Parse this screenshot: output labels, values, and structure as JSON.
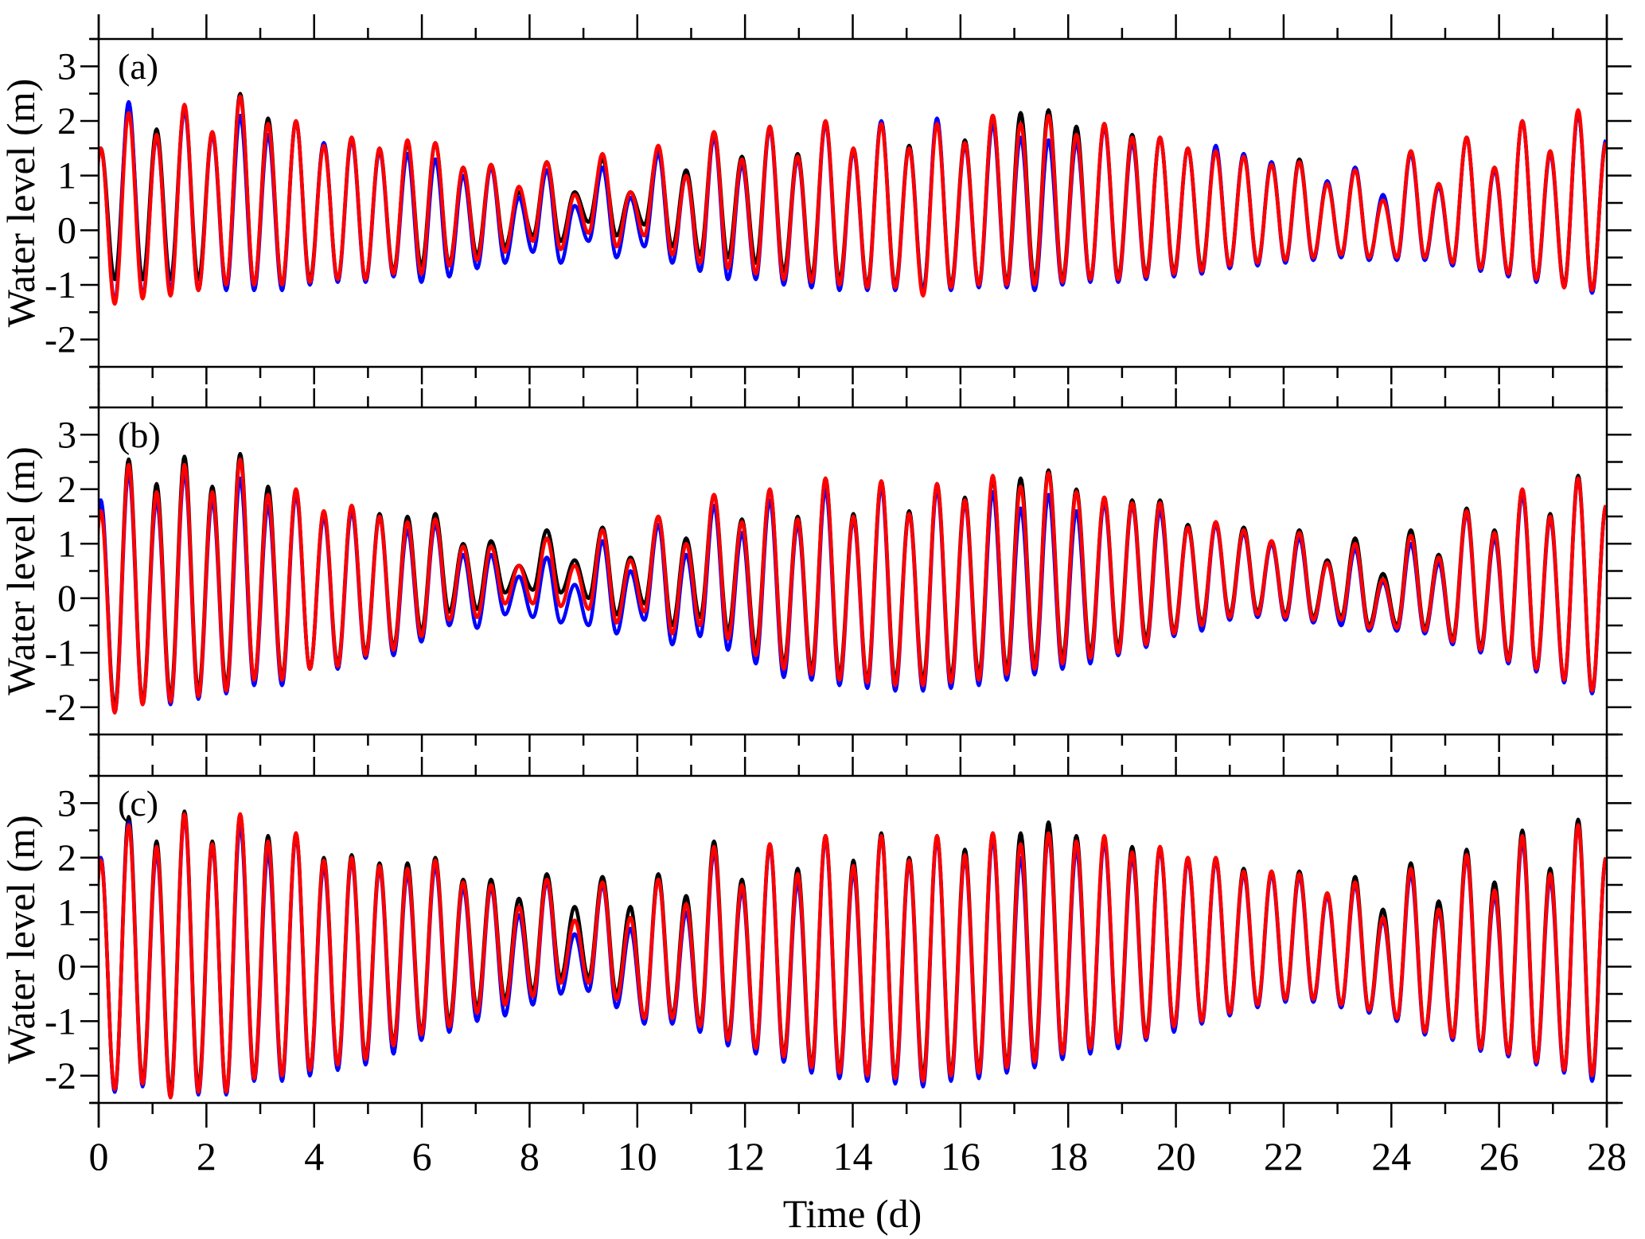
{
  "chart_data": [
    {
      "type": "line",
      "panel_label": "(a)",
      "xlabel": "",
      "ylabel": "Water level (m)",
      "xlim": [
        0,
        28
      ],
      "ylim": [
        -2.5,
        3.5
      ],
      "yticks": [
        -2,
        -1,
        0,
        1,
        2,
        3
      ],
      "grid": false,
      "series": [
        {
          "color": "#000000",
          "high_water": [
            1.5,
            2.2,
            1.85,
            2.25,
            1.8,
            2.5,
            2.05,
            2.0,
            1.6,
            1.7,
            1.5,
            1.6,
            1.6,
            1.15,
            1.2,
            0.7,
            1.25,
            0.7,
            1.3,
            0.7,
            1.5,
            1.1,
            1.8,
            1.35,
            1.9,
            1.4,
            2.0,
            1.5,
            2.0,
            1.55,
            2.0,
            1.65,
            2.1,
            2.15,
            2.2,
            1.9,
            1.95,
            1.75,
            1.7,
            1.5,
            1.5,
            1.4,
            1.25,
            1.3,
            0.9,
            1.15,
            0.6,
            1.45,
            0.85,
            1.7,
            1.15,
            2.0,
            1.45,
            2.15,
            1.6
          ],
          "low_water": [
            -0.9,
            -0.9,
            -0.9,
            -0.9,
            -1.0,
            -1.0,
            -1.0,
            -0.9,
            -0.9,
            -0.9,
            -0.75,
            -0.65,
            -0.6,
            -0.45,
            -0.3,
            -0.1,
            -0.2,
            0.15,
            -0.1,
            0.1,
            -0.3,
            -0.45,
            -0.5,
            -0.6,
            -0.75,
            -0.85,
            -0.9,
            -1.0,
            -1.0,
            -1.1,
            -1.0,
            -1.0,
            -0.95,
            -0.9,
            -0.9,
            -0.9,
            -0.85,
            -0.8,
            -0.75,
            -0.7,
            -0.65,
            -0.6,
            -0.55,
            -0.5,
            -0.45,
            -0.5,
            -0.5,
            -0.5,
            -0.6,
            -0.7,
            -0.8,
            -0.9,
            -1.0,
            -1.1
          ]
        },
        {
          "color": "#0000ff",
          "high_water": [
            1.5,
            2.35,
            1.7,
            2.2,
            1.75,
            2.1,
            1.75,
            2.0,
            1.6,
            1.65,
            1.45,
            1.4,
            1.3,
            1.0,
            1.15,
            0.6,
            1.1,
            0.45,
            1.15,
            0.6,
            1.4,
            1.0,
            1.7,
            1.2,
            1.85,
            1.3,
            1.95,
            1.45,
            2.0,
            1.5,
            2.05,
            1.55,
            1.95,
            1.7,
            1.65,
            1.6,
            1.9,
            1.6,
            1.7,
            1.5,
            1.55,
            1.4,
            1.25,
            1.25,
            0.9,
            1.15,
            0.65,
            1.4,
            0.8,
            1.7,
            1.1,
            2.0,
            1.4,
            2.15,
            1.65
          ],
          "low_water": [
            -1.3,
            -1.2,
            -1.1,
            -1.1,
            -1.1,
            -1.1,
            -1.1,
            -1.0,
            -0.95,
            -0.95,
            -0.85,
            -0.95,
            -0.85,
            -0.7,
            -0.6,
            -0.4,
            -0.6,
            -0.2,
            -0.5,
            -0.3,
            -0.6,
            -0.75,
            -0.9,
            -0.9,
            -1.0,
            -1.05,
            -1.1,
            -1.1,
            -1.1,
            -1.15,
            -1.1,
            -1.05,
            -1.05,
            -1.1,
            -1.0,
            -0.95,
            -0.95,
            -0.9,
            -0.85,
            -0.8,
            -0.7,
            -0.65,
            -0.6,
            -0.55,
            -0.5,
            -0.55,
            -0.55,
            -0.55,
            -0.65,
            -0.75,
            -0.85,
            -0.95,
            -1.05,
            -1.15
          ]
        },
        {
          "color": "#ff0000",
          "high_water": [
            1.5,
            2.15,
            1.75,
            2.3,
            1.8,
            2.45,
            1.95,
            2.0,
            1.55,
            1.7,
            1.5,
            1.65,
            1.6,
            1.15,
            1.2,
            0.8,
            1.25,
            0.65,
            1.4,
            0.7,
            1.55,
            1.0,
            1.8,
            1.3,
            1.9,
            1.35,
            2.0,
            1.5,
            1.95,
            1.5,
            1.95,
            1.6,
            2.1,
            1.95,
            2.1,
            1.75,
            1.95,
            1.7,
            1.7,
            1.5,
            1.45,
            1.35,
            1.2,
            1.25,
            0.85,
            1.1,
            0.55,
            1.45,
            0.85,
            1.7,
            1.15,
            2.0,
            1.45,
            2.2,
            1.6
          ],
          "low_water": [
            -1.35,
            -1.25,
            -1.2,
            -1.1,
            -1.0,
            -1.0,
            -1.0,
            -0.95,
            -0.9,
            -0.9,
            -0.8,
            -0.8,
            -0.65,
            -0.55,
            -0.4,
            -0.2,
            -0.35,
            -0.05,
            -0.3,
            -0.1,
            -0.45,
            -0.6,
            -0.7,
            -0.8,
            -0.9,
            -0.95,
            -1.0,
            -1.05,
            -1.05,
            -1.2,
            -1.05,
            -1.0,
            -1.0,
            -1.0,
            -0.95,
            -0.9,
            -0.9,
            -0.85,
            -0.8,
            -0.75,
            -0.65,
            -0.6,
            -0.55,
            -0.5,
            -0.45,
            -0.5,
            -0.5,
            -0.5,
            -0.6,
            -0.7,
            -0.8,
            -0.9,
            -1.05,
            -1.1
          ]
        }
      ]
    },
    {
      "type": "line",
      "panel_label": "(b)",
      "xlabel": "",
      "ylabel": "Water level (m)",
      "xlim": [
        0,
        28
      ],
      "ylim": [
        -2.5,
        3.5
      ],
      "yticks": [
        -2,
        -1,
        0,
        1,
        2,
        3
      ],
      "grid": false,
      "series": [
        {
          "color": "#000000",
          "high_water": [
            1.7,
            2.55,
            2.1,
            2.6,
            2.05,
            2.65,
            2.05,
            2.0,
            1.6,
            1.7,
            1.55,
            1.5,
            1.55,
            1.0,
            1.05,
            0.6,
            1.25,
            0.7,
            1.3,
            0.75,
            1.5,
            1.1,
            1.9,
            1.45,
            2.0,
            1.5,
            2.2,
            1.55,
            2.15,
            1.6,
            2.1,
            1.85,
            2.2,
            2.2,
            2.35,
            2.0,
            1.85,
            1.8,
            1.8,
            1.35,
            1.4,
            1.3,
            1.05,
            1.25,
            0.7,
            1.1,
            0.45,
            1.25,
            0.8,
            1.65,
            1.25,
            2.0,
            1.55,
            2.25,
            1.7
          ],
          "low_water": [
            -2.0,
            -1.9,
            -1.8,
            -1.7,
            -1.6,
            -1.5,
            -1.45,
            -1.3,
            -1.2,
            -1.0,
            -0.9,
            -0.6,
            -0.25,
            -0.2,
            0.1,
            0.15,
            0.1,
            0.0,
            -0.3,
            -0.1,
            -0.5,
            -0.35,
            -0.6,
            -0.9,
            -1.2,
            -1.3,
            -1.4,
            -1.5,
            -1.5,
            -1.5,
            -1.45,
            -1.4,
            -1.3,
            -1.2,
            -1.1,
            -1.0,
            -0.9,
            -0.75,
            -0.6,
            -0.45,
            -0.3,
            -0.25,
            -0.3,
            -0.35,
            -0.35,
            -0.5,
            -0.5,
            -0.55,
            -0.75,
            -0.9,
            -1.1,
            -1.3,
            -1.5,
            -1.7
          ]
        },
        {
          "color": "#0000ff",
          "high_water": [
            1.8,
            2.3,
            1.8,
            2.3,
            1.8,
            2.2,
            1.7,
            1.9,
            1.5,
            1.6,
            1.5,
            1.25,
            1.35,
            0.8,
            0.8,
            0.4,
            0.75,
            0.25,
            1.05,
            0.5,
            1.35,
            0.8,
            1.7,
            1.2,
            1.8,
            1.35,
            2.0,
            1.45,
            2.05,
            1.55,
            2.0,
            1.75,
            1.95,
            1.65,
            1.9,
            1.6,
            1.75,
            1.7,
            1.6,
            1.3,
            1.35,
            1.2,
            1.0,
            1.1,
            0.65,
            0.9,
            0.3,
            1.0,
            0.65,
            1.55,
            1.1,
            1.9,
            1.45,
            2.2,
            1.7
          ],
          "low_water": [
            -2.1,
            -1.95,
            -1.95,
            -1.85,
            -1.75,
            -1.6,
            -1.6,
            -1.3,
            -1.3,
            -1.1,
            -1.05,
            -0.8,
            -0.5,
            -0.55,
            -0.3,
            -0.35,
            -0.45,
            -0.5,
            -0.65,
            -0.4,
            -0.85,
            -0.7,
            -0.95,
            -1.2,
            -1.45,
            -1.5,
            -1.6,
            -1.65,
            -1.7,
            -1.7,
            -1.65,
            -1.6,
            -1.5,
            -1.4,
            -1.3,
            -1.2,
            -1.05,
            -0.9,
            -0.7,
            -0.6,
            -0.4,
            -0.35,
            -0.4,
            -0.45,
            -0.5,
            -0.6,
            -0.6,
            -0.65,
            -0.85,
            -1.0,
            -1.2,
            -1.35,
            -1.55,
            -1.75
          ]
        },
        {
          "color": "#ff0000",
          "high_water": [
            1.6,
            2.45,
            1.95,
            2.45,
            1.95,
            2.55,
            1.9,
            2.0,
            1.6,
            1.7,
            1.5,
            1.4,
            1.45,
            0.95,
            0.95,
            0.6,
            1.1,
            0.6,
            1.25,
            0.7,
            1.5,
            1.0,
            1.9,
            1.4,
            2.0,
            1.45,
            2.2,
            1.5,
            2.15,
            1.55,
            2.1,
            1.8,
            2.25,
            2.05,
            2.3,
            1.95,
            1.85,
            1.75,
            1.75,
            1.3,
            1.4,
            1.25,
            1.05,
            1.2,
            0.65,
            1.0,
            0.35,
            1.15,
            0.75,
            1.6,
            1.2,
            2.0,
            1.5,
            2.2,
            1.7
          ],
          "low_water": [
            -2.1,
            -1.95,
            -1.9,
            -1.8,
            -1.7,
            -1.5,
            -1.5,
            -1.3,
            -1.25,
            -1.05,
            -0.95,
            -0.7,
            -0.4,
            -0.35,
            -0.1,
            -0.1,
            -0.15,
            -0.2,
            -0.45,
            -0.25,
            -0.65,
            -0.5,
            -0.75,
            -1.05,
            -1.3,
            -1.4,
            -1.5,
            -1.55,
            -1.6,
            -1.6,
            -1.55,
            -1.5,
            -1.4,
            -1.3,
            -1.2,
            -1.1,
            -1.0,
            -0.85,
            -0.65,
            -0.5,
            -0.35,
            -0.3,
            -0.35,
            -0.4,
            -0.4,
            -0.55,
            -0.55,
            -0.6,
            -0.8,
            -0.95,
            -1.15,
            -1.3,
            -1.5,
            -1.7
          ]
        }
      ]
    },
    {
      "type": "line",
      "panel_label": "(c)",
      "xlabel": "Time (d)",
      "ylabel": "Water level (m)",
      "xlim": [
        0,
        28
      ],
      "ylim": [
        -2.5,
        3.5
      ],
      "xticks": [
        0,
        2,
        4,
        6,
        8,
        10,
        12,
        14,
        16,
        18,
        20,
        22,
        24,
        26,
        28
      ],
      "yticks": [
        -2,
        -1,
        0,
        1,
        2,
        3
      ],
      "grid": false,
      "series": [
        {
          "color": "#000000",
          "high_water": [
            2.0,
            2.75,
            2.3,
            2.85,
            2.3,
            2.8,
            2.4,
            2.45,
            2.0,
            2.05,
            1.9,
            1.9,
            2.0,
            1.6,
            1.6,
            1.25,
            1.7,
            1.1,
            1.65,
            1.1,
            1.7,
            1.3,
            2.3,
            1.6,
            2.25,
            1.8,
            2.4,
            1.95,
            2.45,
            2.0,
            2.4,
            2.15,
            2.45,
            2.45,
            2.65,
            2.4,
            2.35,
            2.2,
            2.2,
            2.0,
            2.0,
            1.8,
            1.75,
            1.75,
            1.35,
            1.65,
            1.05,
            1.9,
            1.2,
            2.15,
            1.55,
            2.5,
            1.8,
            2.7,
            2.0
          ],
          "low_water": [
            -2.3,
            -2.1,
            -2.3,
            -2.2,
            -2.3,
            -2.0,
            -2.0,
            -1.9,
            -1.8,
            -1.65,
            -1.4,
            -1.2,
            -1.0,
            -0.75,
            -0.6,
            -0.45,
            -0.2,
            -0.2,
            -0.5,
            -0.95,
            -0.9,
            -1.05,
            -1.3,
            -1.5,
            -1.6,
            -1.8,
            -1.9,
            -2.0,
            -2.0,
            -2.0,
            -1.95,
            -1.9,
            -1.8,
            -1.7,
            -1.6,
            -1.5,
            -1.4,
            -1.25,
            -1.1,
            -1.0,
            -0.85,
            -0.7,
            -0.6,
            -0.6,
            -0.75,
            -0.8,
            -1.0,
            -1.2,
            -1.3,
            -1.5,
            -1.6,
            -1.75,
            -1.9,
            -2.0
          ]
        },
        {
          "color": "#0000ff",
          "high_water": [
            2.0,
            2.65,
            2.1,
            2.75,
            2.2,
            2.6,
            2.1,
            2.4,
            1.85,
            1.95,
            1.8,
            1.7,
            1.85,
            1.45,
            1.45,
            0.95,
            1.55,
            0.6,
            1.5,
            0.7,
            1.6,
            1.0,
            2.1,
            1.4,
            2.2,
            1.55,
            2.35,
            1.75,
            2.4,
            1.9,
            2.35,
            2.0,
            2.35,
            2.0,
            2.4,
            2.15,
            2.3,
            2.0,
            2.15,
            1.95,
            1.95,
            1.7,
            1.7,
            1.65,
            1.3,
            1.5,
            0.85,
            1.7,
            1.0,
            2.0,
            1.3,
            2.3,
            1.6,
            2.6,
            2.0
          ],
          "low_water": [
            -2.3,
            -2.2,
            -2.4,
            -2.35,
            -2.35,
            -2.1,
            -2.1,
            -2.0,
            -1.9,
            -1.8,
            -1.6,
            -1.35,
            -1.2,
            -1.0,
            -0.9,
            -0.7,
            -0.5,
            -0.45,
            -0.75,
            -1.05,
            -1.05,
            -1.2,
            -1.45,
            -1.6,
            -1.75,
            -1.95,
            -2.05,
            -2.1,
            -2.15,
            -2.2,
            -2.1,
            -2.05,
            -1.95,
            -1.85,
            -1.7,
            -1.6,
            -1.5,
            -1.35,
            -1.2,
            -1.05,
            -0.9,
            -0.75,
            -0.65,
            -0.65,
            -0.75,
            -0.85,
            -1.0,
            -1.25,
            -1.35,
            -1.55,
            -1.65,
            -1.8,
            -1.95,
            -2.1
          ]
        },
        {
          "color": "#ff0000",
          "high_water": [
            1.95,
            2.6,
            2.2,
            2.8,
            2.25,
            2.8,
            2.3,
            2.45,
            1.95,
            2.0,
            1.85,
            1.8,
            1.95,
            1.55,
            1.5,
            1.1,
            1.6,
            0.85,
            1.55,
            0.9,
            1.6,
            1.15,
            2.2,
            1.5,
            2.25,
            1.7,
            2.4,
            1.85,
            2.4,
            1.95,
            2.4,
            2.05,
            2.45,
            2.25,
            2.45,
            2.3,
            2.4,
            2.1,
            2.2,
            2.0,
            2.0,
            1.75,
            1.75,
            1.7,
            1.35,
            1.55,
            0.9,
            1.8,
            1.05,
            2.05,
            1.4,
            2.4,
            1.7,
            2.6,
            2.0
          ],
          "low_water": [
            -2.25,
            -2.15,
            -2.4,
            -2.3,
            -2.3,
            -2.05,
            -2.0,
            -1.9,
            -1.8,
            -1.7,
            -1.45,
            -1.25,
            -1.1,
            -0.85,
            -0.7,
            -0.55,
            -0.3,
            -0.3,
            -0.6,
            -0.95,
            -0.95,
            -1.1,
            -1.35,
            -1.5,
            -1.65,
            -1.85,
            -1.95,
            -2.0,
            -2.05,
            -2.1,
            -2.0,
            -1.95,
            -1.85,
            -1.75,
            -1.6,
            -1.5,
            -1.4,
            -1.3,
            -1.1,
            -1.0,
            -0.85,
            -0.7,
            -0.6,
            -0.6,
            -0.7,
            -0.8,
            -0.95,
            -1.2,
            -1.3,
            -1.5,
            -1.6,
            -1.75,
            -1.9,
            -2.0
          ]
        }
      ]
    }
  ]
}
